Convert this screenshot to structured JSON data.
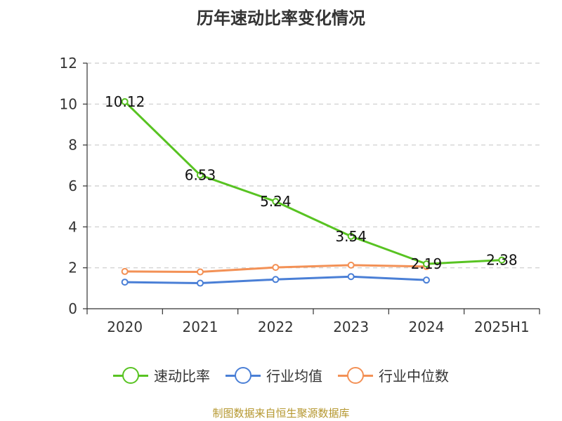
{
  "chart_data": {
    "type": "line",
    "title": "历年速动比率变化情况",
    "categories": [
      "2020",
      "2021",
      "2022",
      "2023",
      "2024",
      "2025H1"
    ],
    "ylim": [
      0,
      12
    ],
    "yticks": [
      0,
      2,
      4,
      6,
      8,
      10,
      12
    ],
    "ytick_labels": [
      "0",
      "2",
      "4",
      "6",
      "8",
      "10",
      "12"
    ],
    "grid": true,
    "legend_position": "bottom",
    "series": [
      {
        "name": "速动比率",
        "color": "#58c322",
        "values": [
          10.12,
          6.53,
          5.24,
          3.54,
          2.19,
          2.38
        ],
        "labels": [
          "10.12",
          "6.53",
          "5.24",
          "3.54",
          "2.19",
          "2.38"
        ]
      },
      {
        "name": "行业均值",
        "color": "#4a7fd6",
        "values": [
          1.3,
          1.25,
          1.43,
          1.57,
          1.4,
          null
        ]
      },
      {
        "name": "行业中位数",
        "color": "#f39156",
        "values": [
          1.82,
          1.8,
          2.02,
          2.13,
          2.06,
          null
        ]
      }
    ]
  },
  "source_note": "制图数据来自恒生聚源数据库"
}
